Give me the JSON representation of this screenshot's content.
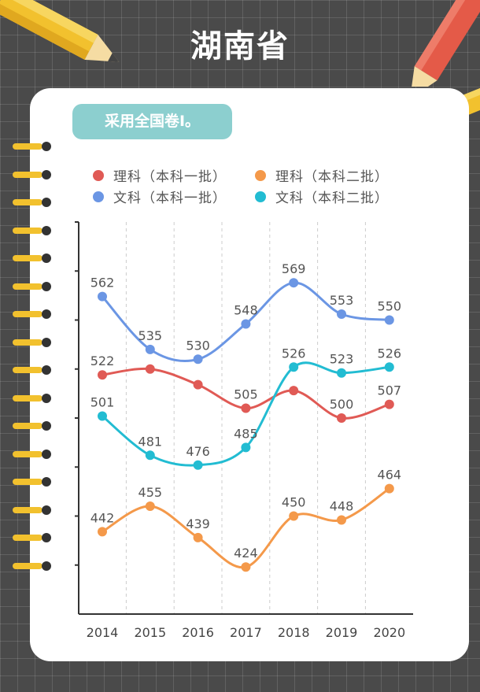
{
  "title": "湖南省",
  "badge": "采用全国卷Ⅰ。",
  "colors": {
    "like_yi": "#e05a55",
    "like_er": "#f4994a",
    "wenke_yi": "#6b96e4",
    "wenke_er": "#22bcd2",
    "card": "#ffffff",
    "badge": "#8ccfcf"
  },
  "chart_data": {
    "type": "line",
    "x": [
      "2014",
      "2015",
      "2016",
      "2017",
      "2018",
      "2019",
      "2020"
    ],
    "ylim": [
      400,
      600
    ],
    "grid": "vertical-dashed",
    "legend_position": "top",
    "series": [
      {
        "name": "理科（本科一批）",
        "color": "#e05a55",
        "values": [
          522,
          525,
          517,
          505,
          514,
          500,
          507
        ],
        "labels": [
          "522",
          "",
          "",
          "505",
          "",
          "500",
          "507"
        ]
      },
      {
        "name": "理科（本科二批）",
        "color": "#f4994a",
        "values": [
          442,
          455,
          439,
          424,
          450,
          448,
          464
        ],
        "labels": [
          "442",
          "455",
          "439",
          "424",
          "450",
          "448",
          "464"
        ]
      },
      {
        "name": "文科（本科一批）",
        "color": "#6b96e4",
        "values": [
          562,
          535,
          530,
          548,
          569,
          553,
          550
        ],
        "labels": [
          "562",
          "535",
          "530",
          "548",
          "569",
          "553",
          "550"
        ]
      },
      {
        "name": "文科（本科二批）",
        "color": "#22bcd2",
        "values": [
          501,
          481,
          476,
          485,
          526,
          523,
          526
        ],
        "labels": [
          "501",
          "481",
          "476",
          "485",
          "526",
          "523",
          "526"
        ]
      }
    ]
  }
}
